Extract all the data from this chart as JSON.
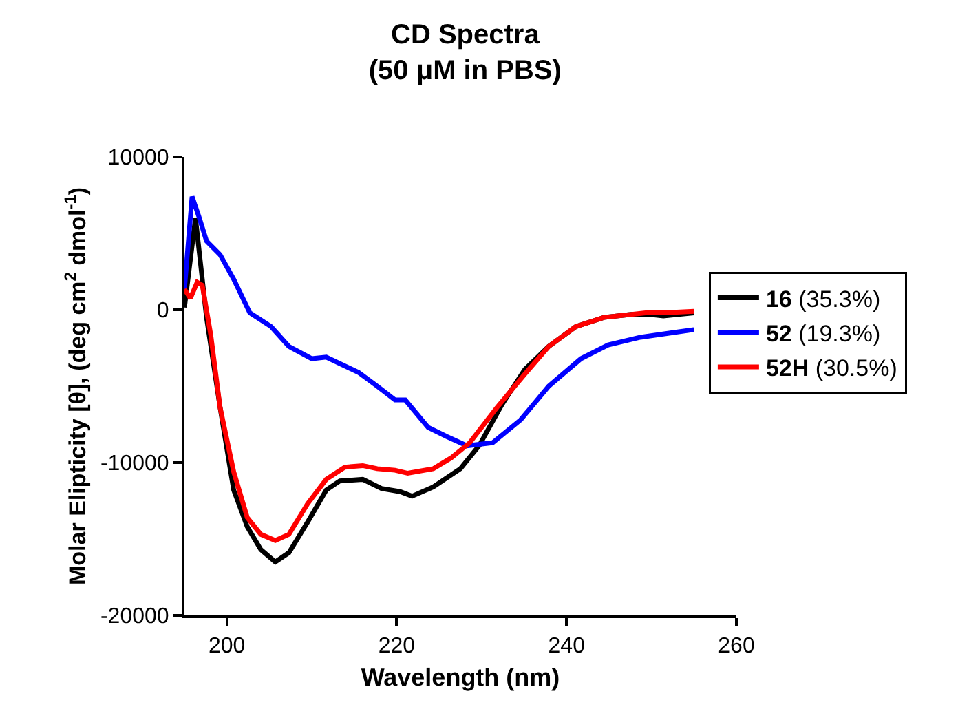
{
  "chart_data": {
    "type": "line",
    "title": "CD Spectra",
    "subtitle": "(50 μM in PBS)",
    "xlabel": "Wavelength (nm)",
    "ylabel": "Molar Elipticity [θ], (deg cm$^{2}$ dmol$^{-1}$)",
    "xlim": [
      195,
      260
    ],
    "xticks": [
      200,
      220,
      240,
      260
    ],
    "ylim": [
      -20000,
      10000
    ],
    "yticks": [
      -20000,
      -10000,
      0,
      10000
    ],
    "grid": false,
    "legend": "right",
    "marker": "none",
    "line_style": "solid",
    "series": [
      {
        "name": "16 (35.3%)",
        "color": "#000000",
        "x": [
          195,
          196.3,
          197.6,
          199.2,
          200.8,
          202.4,
          204,
          205.7,
          207.3,
          209.5,
          211.7,
          213.3,
          216,
          218.2,
          220.4,
          221.8,
          224.3,
          227.5,
          229.7,
          232.4,
          235.1,
          237.9,
          241.1,
          244.4,
          247.6,
          249.8,
          251.4,
          255
        ],
        "values": [
          150,
          6000,
          -500,
          -6400,
          -11800,
          -14200,
          -15700,
          -16500,
          -15900,
          -13900,
          -11800,
          -11200,
          -11100,
          -11700,
          -11900,
          -12200,
          -11600,
          -10400,
          -8900,
          -6200,
          -3900,
          -2400,
          -1100,
          -500,
          -300,
          -300,
          -400,
          -200
        ]
      },
      {
        "name": "52 (19.3%)",
        "color": "#0000ff",
        "x": [
          195,
          195.9,
          196.7,
          197.6,
          199.2,
          200.8,
          202.7,
          205.2,
          207.3,
          210,
          211.7,
          215.5,
          217.7,
          219.8,
          221,
          223.7,
          225.9,
          228.3,
          231.3,
          234.6,
          237.9,
          241.7,
          244.9,
          248.7,
          252.5,
          255
        ],
        "values": [
          1350,
          7400,
          6100,
          4500,
          3600,
          2000,
          -200,
          -1100,
          -2400,
          -3200,
          -3100,
          -4100,
          -5000,
          -5900,
          -5900,
          -7700,
          -8300,
          -8900,
          -8700,
          -7200,
          -5000,
          -3200,
          -2300,
          -1800,
          -1500,
          -1300
        ]
      },
      {
        "name": "52H (30.5%)",
        "color": "#ff0000",
        "x": [
          195,
          195.7,
          196.5,
          197.1,
          198.1,
          199.2,
          200.8,
          202.4,
          204,
          205.7,
          207.3,
          209.5,
          211.7,
          213.9,
          216,
          217.7,
          219.8,
          221.3,
          224.3,
          226.4,
          228.6,
          231.8,
          235.1,
          237.9,
          241.1,
          244.4,
          249.3,
          251.4,
          255
        ],
        "values": [
          1350,
          750,
          1800,
          1600,
          -1650,
          -6400,
          -10600,
          -13600,
          -14700,
          -15100,
          -14700,
          -12700,
          -11100,
          -10300,
          -10200,
          -10400,
          -10500,
          -10700,
          -10400,
          -9700,
          -8700,
          -6400,
          -4200,
          -2400,
          -1100,
          -500,
          -200,
          -200,
          -100
        ]
      }
    ]
  }
}
